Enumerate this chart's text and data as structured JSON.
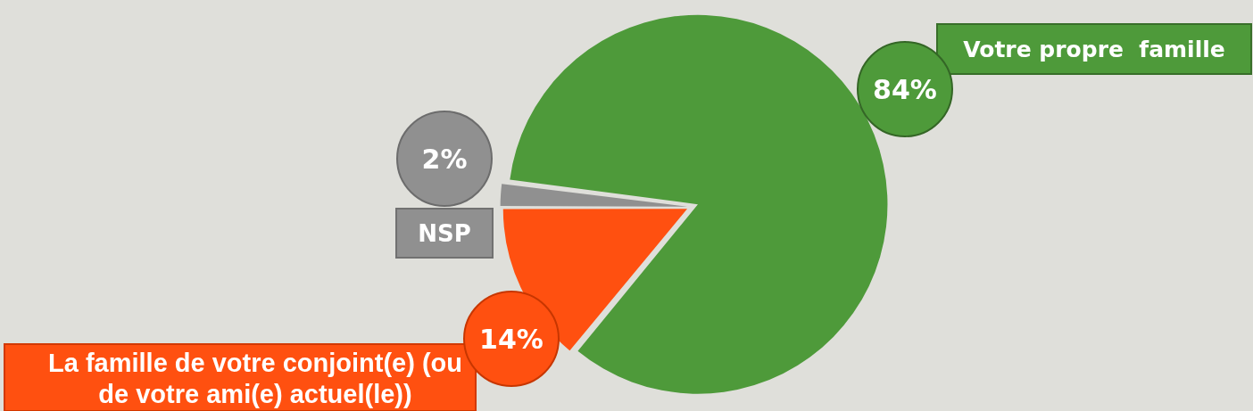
{
  "chart_data": {
    "type": "pie",
    "categories": [
      "Votre propre  famille",
      "La famille de votre conjoint(e) (ou de votre ami(e) actuel(le))",
      "NSP"
    ],
    "values": [
      84,
      14,
      2
    ],
    "colors": [
      "#4e9a3a",
      "#ff5010",
      "#909090"
    ],
    "value_labels": [
      "84%",
      "14%",
      "2%"
    ]
  }
}
